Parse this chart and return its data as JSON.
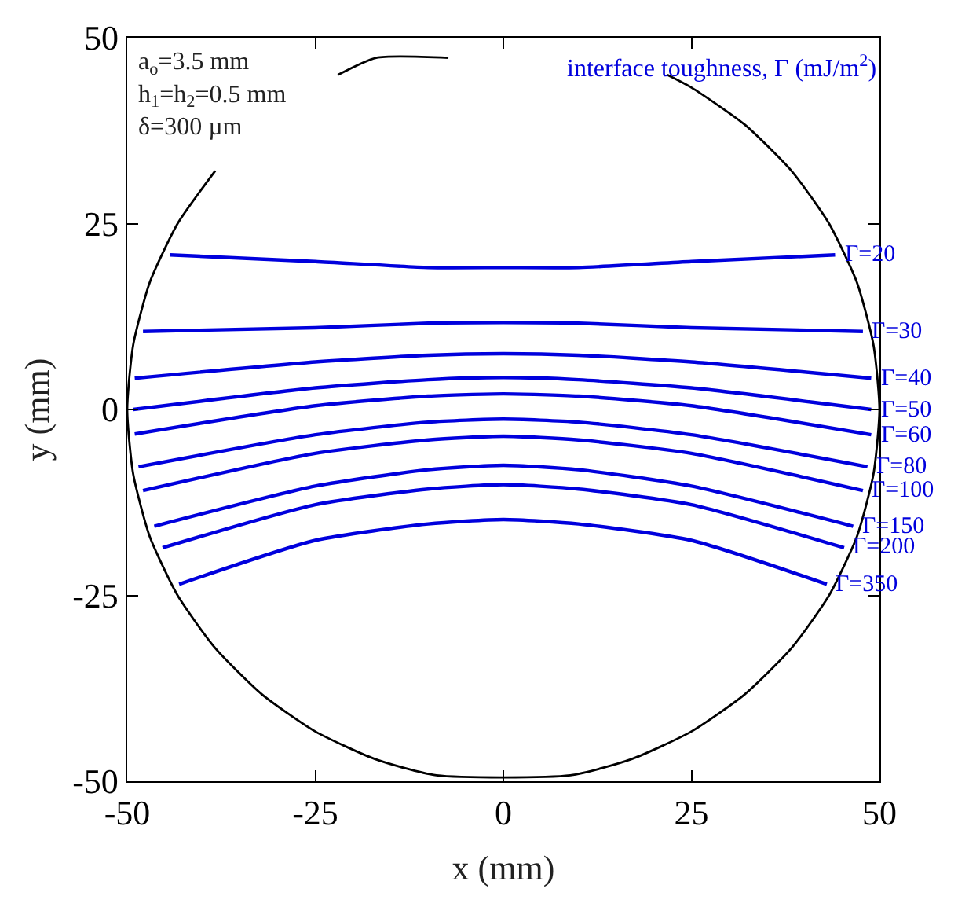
{
  "chart_data": {
    "type": "line",
    "xlabel": "x (mm)",
    "ylabel": "y (mm)",
    "xlim": [
      -50,
      50
    ],
    "xticks": [
      -50,
      -25,
      0,
      25,
      50
    ],
    "ylim": [
      -50,
      50
    ],
    "yticks": [
      -50,
      -25,
      0,
      25,
      50
    ],
    "legend": false,
    "marker": "none",
    "line_style": "solid",
    "annotations": [
      "interface toughness, Γ (mJ/m$^{2}$)",
      "a$_{o}$=3.5 mm",
      "h$_{1}$=h$_{2}$=0.5 mm",
      "δ=300 µm"
    ],
    "series": [
      {
        "color": "#000000",
        "x": [
          21.8,
          25,
          32.1,
          38.3,
          43.3,
          47,
          49.2,
          50,
          49.2,
          47,
          43.3,
          38.3,
          32.1,
          25,
          17.1,
          8.9,
          -8.9,
          -17.1,
          -25,
          -32.1,
          -38.3,
          -43.3,
          -47,
          -49.2,
          -50,
          -49.2,
          -47,
          -43.3,
          -38.3,
          null,
          -22,
          -16.9,
          -7.3
        ],
        "values": [
          45.0,
          43.3,
          38.3,
          32.1,
          25,
          17.1,
          8.7,
          0,
          -8.7,
          -17.1,
          -25,
          -32.1,
          -38.3,
          -43.3,
          -47,
          -49.2,
          -49.2,
          -47,
          -43.3,
          -38.3,
          -32.1,
          -25,
          -17.1,
          -8.7,
          0,
          8.7,
          17.1,
          25,
          32.1,
          null,
          45.0,
          47.3,
          47.3
        ]
      },
      {
        "name": "Γ=20",
        "color": "#0000dd",
        "x": [
          -44.3,
          -25,
          -10,
          0,
          10,
          25,
          44.1
        ],
        "values": [
          20.8,
          19.9,
          19.1,
          19.1,
          19.1,
          19.9,
          20.8
        ]
      },
      {
        "name": "Γ=30",
        "color": "#0000dd",
        "x": [
          -47.9,
          -25,
          -10,
          0,
          10,
          25,
          47.8
        ],
        "values": [
          10.5,
          11.0,
          11.6,
          11.7,
          11.6,
          11.0,
          10.5
        ]
      },
      {
        "name": "Γ=40",
        "color": "#0000dd",
        "x": [
          -49.0,
          -25,
          -10,
          0,
          10,
          25,
          48.9
        ],
        "values": [
          4.2,
          6.4,
          7.3,
          7.5,
          7.3,
          6.4,
          4.2
        ]
      },
      {
        "name": "Γ=50",
        "color": "#0000dd",
        "x": [
          -49.2,
          -25,
          -10,
          0,
          10,
          25,
          48.9
        ],
        "values": [
          0,
          2.9,
          4.0,
          4.3,
          4.0,
          2.9,
          0
        ]
      },
      {
        "name": "Γ=60",
        "color": "#0000dd",
        "x": [
          -49.0,
          -25,
          -10,
          0,
          10,
          25,
          48.9
        ],
        "values": [
          -3.3,
          0.5,
          1.8,
          2.1,
          1.8,
          0.5,
          -3.4
        ]
      },
      {
        "name": "Γ=80",
        "color": "#0000dd",
        "x": [
          -48.5,
          -25,
          -10,
          0,
          10,
          25,
          48.4
        ],
        "values": [
          -7.7,
          -3.4,
          -1.7,
          -1.3,
          -1.7,
          -3.4,
          -7.7
        ]
      },
      {
        "name": "Γ=100",
        "color": "#0000dd",
        "x": [
          -47.9,
          -25,
          -10,
          0,
          10,
          25,
          47.8
        ],
        "values": [
          -10.9,
          -5.9,
          -4.1,
          -3.6,
          -4.1,
          -5.9,
          -10.9
        ]
      },
      {
        "name": "Γ=150",
        "color": "#0000dd",
        "x": [
          -46.4,
          -25,
          -10,
          0,
          10,
          25,
          46.5
        ],
        "values": [
          -15.7,
          -10.3,
          -8.1,
          -7.5,
          -8.1,
          -10.3,
          -15.7
        ]
      },
      {
        "name": "Γ=200",
        "color": "#0000dd",
        "x": [
          -45.3,
          -25,
          -10,
          0,
          10,
          25,
          45.3
        ],
        "values": [
          -18.6,
          -12.8,
          -10.7,
          -10.1,
          -10.7,
          -12.8,
          -18.6
        ]
      },
      {
        "name": "Γ=350",
        "color": "#0000dd",
        "x": [
          -43.1,
          -25,
          -10,
          0,
          10,
          25,
          43.0
        ],
        "values": [
          -23.5,
          -17.6,
          -15.4,
          -14.8,
          -15.4,
          -17.6,
          -23.5
        ]
      }
    ]
  }
}
